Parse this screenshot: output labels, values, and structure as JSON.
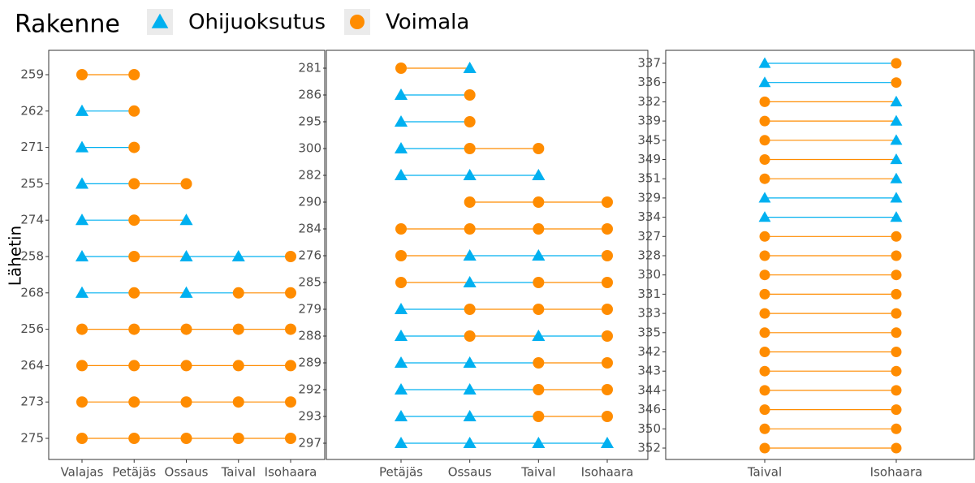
{
  "chart_data": {
    "type": "dot-path",
    "legend_title": "Rakenne",
    "y_label": "Lähetin",
    "series": [
      {
        "name": "Ohijuoksutus",
        "color": "#00b0f0",
        "marker": "triangle"
      },
      {
        "name": "Voimala",
        "color": "#ff8c00",
        "marker": "circle"
      }
    ],
    "panels": [
      {
        "x": [
          "Valajas",
          "Petäjäs",
          "Ossaus",
          "Taival",
          "Isohaara"
        ],
        "categories": [
          "259",
          "262",
          "271",
          "255",
          "274",
          "258",
          "268",
          "256",
          "264",
          "273",
          "275"
        ],
        "rows": [
          [
            1,
            1,
            null,
            null,
            null
          ],
          [
            0,
            1,
            null,
            null,
            null
          ],
          [
            0,
            1,
            null,
            null,
            null
          ],
          [
            0,
            1,
            1,
            null,
            null
          ],
          [
            0,
            1,
            0,
            null,
            null
          ],
          [
            0,
            1,
            0,
            0,
            1
          ],
          [
            0,
            1,
            0,
            1,
            1
          ],
          [
            1,
            1,
            1,
            1,
            1
          ],
          [
            1,
            1,
            1,
            1,
            1
          ],
          [
            1,
            1,
            1,
            1,
            1
          ],
          [
            1,
            1,
            1,
            1,
            1
          ]
        ]
      },
      {
        "x": [
          "Petäjäs",
          "Ossaus",
          "Taival",
          "Isohaara"
        ],
        "categories": [
          "281",
          "286",
          "295",
          "300",
          "282",
          "290",
          "284",
          "276",
          "285",
          "279",
          "288",
          "289",
          "292",
          "293",
          "297"
        ],
        "rows": [
          [
            1,
            0,
            null,
            null
          ],
          [
            0,
            1,
            null,
            null
          ],
          [
            0,
            1,
            null,
            null
          ],
          [
            0,
            1,
            1,
            null
          ],
          [
            0,
            0,
            0,
            null
          ],
          [
            null,
            1,
            1,
            1
          ],
          [
            1,
            1,
            1,
            1
          ],
          [
            1,
            0,
            0,
            1
          ],
          [
            1,
            0,
            1,
            1
          ],
          [
            0,
            1,
            1,
            1
          ],
          [
            0,
            1,
            0,
            1
          ],
          [
            0,
            0,
            1,
            1
          ],
          [
            0,
            0,
            1,
            1
          ],
          [
            0,
            0,
            1,
            1
          ],
          [
            0,
            0,
            0,
            0
          ]
        ]
      },
      {
        "x": [
          "Taival",
          "Isohaara"
        ],
        "categories": [
          "337",
          "336",
          "332",
          "339",
          "345",
          "349",
          "351",
          "329",
          "334",
          "327",
          "328",
          "330",
          "331",
          "333",
          "335",
          "342",
          "343",
          "344",
          "346",
          "350",
          "352"
        ],
        "rows": [
          [
            0,
            1
          ],
          [
            0,
            1
          ],
          [
            1,
            0
          ],
          [
            1,
            0
          ],
          [
            1,
            0
          ],
          [
            1,
            0
          ],
          [
            1,
            0
          ],
          [
            0,
            0
          ],
          [
            0,
            0
          ],
          [
            1,
            1
          ],
          [
            1,
            1
          ],
          [
            1,
            1
          ],
          [
            1,
            1
          ],
          [
            1,
            1
          ],
          [
            1,
            1
          ],
          [
            1,
            1
          ],
          [
            1,
            1
          ],
          [
            1,
            1
          ],
          [
            1,
            1
          ],
          [
            1,
            1
          ],
          [
            1,
            1
          ]
        ]
      }
    ]
  }
}
